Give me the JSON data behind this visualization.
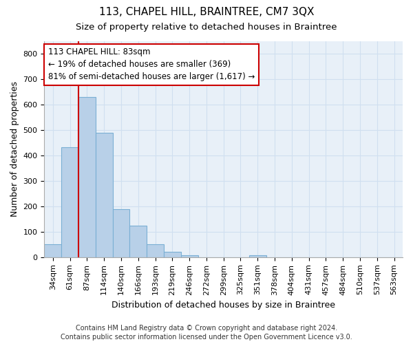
{
  "title": "113, CHAPEL HILL, BRAINTREE, CM7 3QX",
  "subtitle": "Size of property relative to detached houses in Braintree",
  "xlabel": "Distribution of detached houses by size in Braintree",
  "ylabel": "Number of detached properties",
  "footnote1": "Contains HM Land Registry data © Crown copyright and database right 2024.",
  "footnote2": "Contains public sector information licensed under the Open Government Licence v3.0.",
  "bar_labels": [
    "34sqm",
    "61sqm",
    "87sqm",
    "114sqm",
    "140sqm",
    "166sqm",
    "193sqm",
    "219sqm",
    "246sqm",
    "272sqm",
    "299sqm",
    "325sqm",
    "351sqm",
    "378sqm",
    "404sqm",
    "431sqm",
    "457sqm",
    "484sqm",
    "510sqm",
    "537sqm",
    "563sqm"
  ],
  "bar_values": [
    50,
    433,
    630,
    490,
    190,
    125,
    50,
    22,
    8,
    0,
    0,
    0,
    8,
    0,
    0,
    0,
    0,
    0,
    0,
    0,
    0
  ],
  "bar_color": "#b8d0e8",
  "bar_edgecolor": "#7aafd4",
  "grid_color": "#d0dff0",
  "vline_x_index": 2,
  "vline_color": "#cc0000",
  "annotation_text": "113 CHAPEL HILL: 83sqm\n← 19% of detached houses are smaller (369)\n81% of semi-detached houses are larger (1,617) →",
  "annotation_box_color": "#ffffff",
  "annotation_border_color": "#cc0000",
  "ylim": [
    0,
    850
  ],
  "yticks": [
    0,
    100,
    200,
    300,
    400,
    500,
    600,
    700,
    800
  ],
  "title_fontsize": 11,
  "subtitle_fontsize": 9.5,
  "axis_label_fontsize": 9,
  "tick_fontsize": 8,
  "annotation_fontsize": 8.5,
  "footnote_fontsize": 7,
  "background_color": "#ffffff",
  "plot_bg_color": "#e8f0f8"
}
